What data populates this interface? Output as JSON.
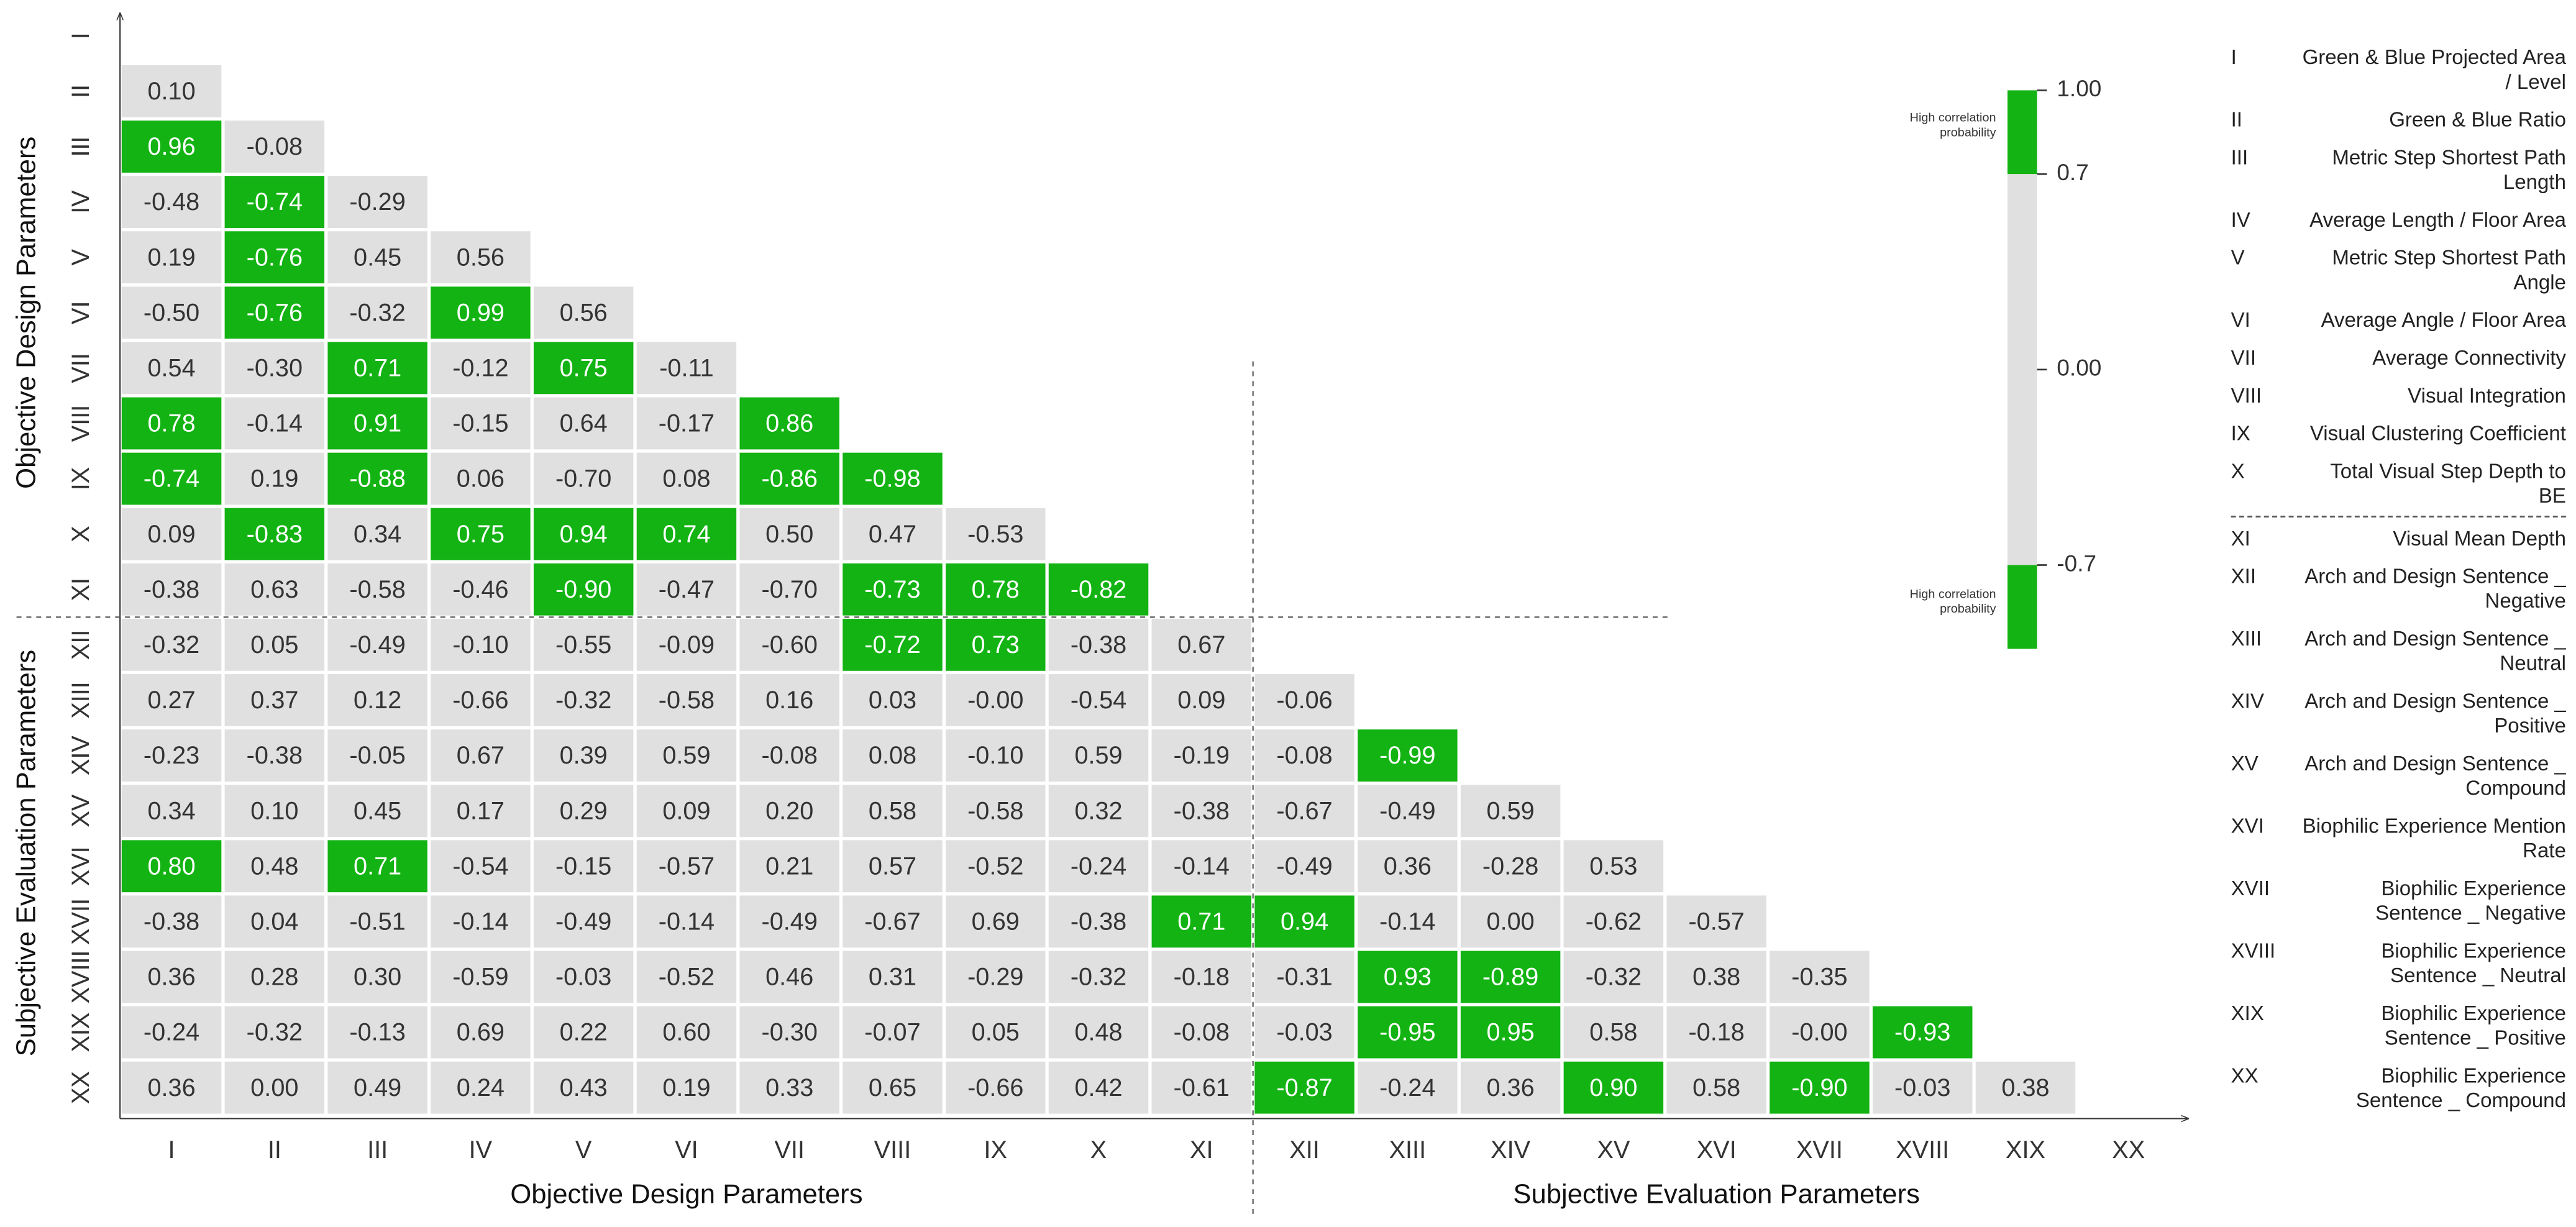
{
  "chart_data": {
    "type": "heatmap",
    "labels": [
      "I",
      "II",
      "III",
      "IV",
      "V",
      "VI",
      "VII",
      "VIII",
      "IX",
      "X",
      "XI",
      "XII",
      "XIII",
      "XIV",
      "XV",
      "XVI",
      "XVII",
      "XVIII",
      "XIX",
      "XX"
    ],
    "values": [
      [],
      [
        0.1
      ],
      [
        0.96,
        -0.08
      ],
      [
        -0.48,
        -0.74,
        -0.29
      ],
      [
        0.19,
        -0.76,
        0.45,
        0.56
      ],
      [
        -0.5,
        -0.76,
        -0.32,
        0.99,
        0.56
      ],
      [
        0.54,
        -0.3,
        0.71,
        -0.12,
        0.75,
        -0.11
      ],
      [
        0.78,
        -0.14,
        0.91,
        -0.15,
        0.64,
        -0.17,
        0.86
      ],
      [
        -0.74,
        0.19,
        -0.88,
        0.06,
        -0.7,
        0.08,
        -0.86,
        -0.98
      ],
      [
        0.09,
        -0.83,
        0.34,
        0.75,
        0.94,
        0.74,
        0.5,
        0.47,
        -0.53
      ],
      [
        -0.38,
        0.63,
        -0.58,
        -0.46,
        -0.9,
        -0.47,
        -0.7,
        -0.73,
        0.78,
        -0.82
      ],
      [
        -0.32,
        0.05,
        -0.49,
        -0.1,
        -0.55,
        -0.09,
        -0.6,
        -0.72,
        0.73,
        -0.38,
        0.67
      ],
      [
        0.27,
        0.37,
        0.12,
        -0.66,
        -0.32,
        -0.58,
        0.16,
        0.03,
        -0.0,
        -0.54,
        0.09,
        -0.06
      ],
      [
        -0.23,
        -0.38,
        -0.05,
        0.67,
        0.39,
        0.59,
        -0.08,
        0.08,
        -0.1,
        0.59,
        -0.19,
        -0.08,
        -0.99
      ],
      [
        0.34,
        0.1,
        0.45,
        0.17,
        0.29,
        0.09,
        0.2,
        0.58,
        -0.58,
        0.32,
        -0.38,
        -0.67,
        -0.49,
        0.59
      ],
      [
        0.8,
        0.48,
        0.71,
        -0.54,
        -0.15,
        -0.57,
        0.21,
        0.57,
        -0.52,
        -0.24,
        -0.14,
        -0.49,
        0.36,
        -0.28,
        0.53
      ],
      [
        -0.38,
        0.04,
        -0.51,
        -0.14,
        -0.49,
        -0.14,
        -0.49,
        -0.67,
        0.69,
        -0.38,
        0.71,
        0.94,
        -0.14,
        0.0,
        -0.62,
        -0.57
      ],
      [
        0.36,
        0.28,
        0.3,
        -0.59,
        -0.03,
        -0.52,
        0.46,
        0.31,
        -0.29,
        -0.32,
        -0.18,
        -0.31,
        0.93,
        -0.89,
        -0.32,
        0.38,
        -0.35
      ],
      [
        -0.24,
        -0.32,
        -0.13,
        0.69,
        0.22,
        0.6,
        -0.3,
        -0.07,
        0.05,
        0.48,
        -0.08,
        -0.03,
        -0.95,
        0.95,
        0.58,
        -0.18,
        -0.0,
        -0.93
      ],
      [
        0.36,
        0.0,
        0.49,
        0.24,
        0.43,
        0.19,
        0.33,
        0.65,
        -0.66,
        0.42,
        -0.61,
        -0.87,
        -0.24,
        0.36,
        0.9,
        0.58,
        -0.9,
        -0.03,
        0.38
      ]
    ],
    "value_labels": [
      [],
      [
        "0.10"
      ],
      [
        "0.96",
        "-0.08"
      ],
      [
        "-0.48",
        "-0.74",
        "-0.29"
      ],
      [
        "0.19",
        "-0.76",
        "0.45",
        "0.56"
      ],
      [
        "-0.50",
        "-0.76",
        "-0.32",
        "0.99",
        "0.56"
      ],
      [
        "0.54",
        "-0.30",
        "0.71",
        "-0.12",
        "0.75",
        "-0.11"
      ],
      [
        "0.78",
        "-0.14",
        "0.91",
        "-0.15",
        "0.64",
        "-0.17",
        "0.86"
      ],
      [
        "-0.74",
        "0.19",
        "-0.88",
        "0.06",
        "-0.70",
        "0.08",
        "-0.86",
        "-0.98"
      ],
      [
        "0.09",
        "-0.83",
        "0.34",
        "0.75",
        "0.94",
        "0.74",
        "0.50",
        "0.47",
        "-0.53"
      ],
      [
        "-0.38",
        "0.63",
        "-0.58",
        "-0.46",
        "-0.90",
        "-0.47",
        "-0.70",
        "-0.73",
        "0.78",
        "-0.82"
      ],
      [
        "-0.32",
        "0.05",
        "-0.49",
        "-0.10",
        "-0.55",
        "-0.09",
        "-0.60",
        "-0.72",
        "0.73",
        "-0.38",
        "0.67"
      ],
      [
        "0.27",
        "0.37",
        "0.12",
        "-0.66",
        "-0.32",
        "-0.58",
        "0.16",
        "0.03",
        "-0.00",
        "-0.54",
        "0.09",
        "-0.06"
      ],
      [
        "-0.23",
        "-0.38",
        "-0.05",
        "0.67",
        "0.39",
        "0.59",
        "-0.08",
        "0.08",
        "-0.10",
        "0.59",
        "-0.19",
        "-0.08",
        "-0.99"
      ],
      [
        "0.34",
        "0.10",
        "0.45",
        "0.17",
        "0.29",
        "0.09",
        "0.20",
        "0.58",
        "-0.58",
        "0.32",
        "-0.38",
        "-0.67",
        "-0.49",
        "0.59"
      ],
      [
        "0.80",
        "0.48",
        "0.71",
        "-0.54",
        "-0.15",
        "-0.57",
        "0.21",
        "0.57",
        "-0.52",
        "-0.24",
        "-0.14",
        "-0.49",
        "0.36",
        "-0.28",
        "0.53"
      ],
      [
        "-0.38",
        "0.04",
        "-0.51",
        "-0.14",
        "-0.49",
        "-0.14",
        "-0.49",
        "-0.67",
        "0.69",
        "-0.38",
        "0.71",
        "0.94",
        "-0.14",
        "0.00",
        "-0.62",
        "-0.57"
      ],
      [
        "0.36",
        "0.28",
        "0.30",
        "-0.59",
        "-0.03",
        "-0.52",
        "0.46",
        "0.31",
        "-0.29",
        "-0.32",
        "-0.18",
        "-0.31",
        "0.93",
        "-0.89",
        "-0.32",
        "0.38",
        "-0.35"
      ],
      [
        "-0.24",
        "-0.32",
        "-0.13",
        "0.69",
        "0.22",
        "0.60",
        "-0.30",
        "-0.07",
        "0.05",
        "0.48",
        "-0.08",
        "-0.03",
        "-0.95",
        "0.95",
        "0.58",
        "-0.18",
        "-0.00",
        "-0.93"
      ],
      [
        "0.36",
        "0.00",
        "0.49",
        "0.24",
        "0.43",
        "0.19",
        "0.33",
        "0.65",
        "-0.66",
        "0.42",
        "-0.61",
        "-0.87",
        "-0.24",
        "0.36",
        "0.90",
        "0.58",
        "-0.90",
        "-0.03",
        "0.38"
      ]
    ],
    "group_labels": [
      "Objective Design Parameters",
      "Subjective Evaluation Parameters"
    ],
    "colors": {
      "high": "#12b312",
      "low": "#e0e0e0"
    },
    "colorbar": {
      "ylim": [
        -1,
        1
      ],
      "ticks": [
        {
          "value": 1,
          "label": "1.00"
        },
        0.7,
        {
          "value": 0,
          "label": "0.00"
        },
        -0.7
      ],
      "annotations": [
        "High correlation probability",
        "High correlation probability"
      ]
    },
    "legend": [
      {
        "label": "I",
        "description": "Green & Blue Projected Area / Level"
      },
      {
        "label": "II",
        "description": "Green & Blue Ratio"
      },
      {
        "label": "III",
        "description": "Metric Step Shortest Path Length"
      },
      {
        "label": "IV",
        "description": "Average Length / Floor Area"
      },
      {
        "label": "V",
        "description": "Metric Step Shortest Path Angle"
      },
      {
        "label": "VI",
        "description": "Average Angle / Floor Area"
      },
      {
        "label": "VII",
        "description": "Average Connectivity"
      },
      {
        "label": "VIII",
        "description": "Visual Integration"
      },
      {
        "label": "IX",
        "description": "Visual Clustering Coefficient"
      },
      {
        "label": "X",
        "description": "Total Visual Step Depth to BE"
      },
      {
        "label": "XI",
        "description": "Visual Mean Depth"
      },
      {
        "label": "XII",
        "description": "Arch and Design Sentence _ Negative"
      },
      {
        "label": "XIII",
        "description": "Arch and Design Sentence _ Neutral"
      },
      {
        "label": "XIV",
        "description": "Arch and Design Sentence _ Positive"
      },
      {
        "label": "XV",
        "description": "Arch and Design Sentence _ Compound"
      },
      {
        "label": "XVI",
        "description": "Biophilic Experience Mention Rate"
      },
      {
        "label": "XVII",
        "description": "Biophilic Experience Sentence _ Negative"
      },
      {
        "label": "XVIII",
        "description": "Biophilic Experience Sentence _ Neutral"
      },
      {
        "label": "XIX",
        "description": "Biophilic Experience Sentence _ Positive"
      },
      {
        "label": "XX",
        "description": "Biophilic Experience Sentence _ Compound"
      }
    ]
  }
}
